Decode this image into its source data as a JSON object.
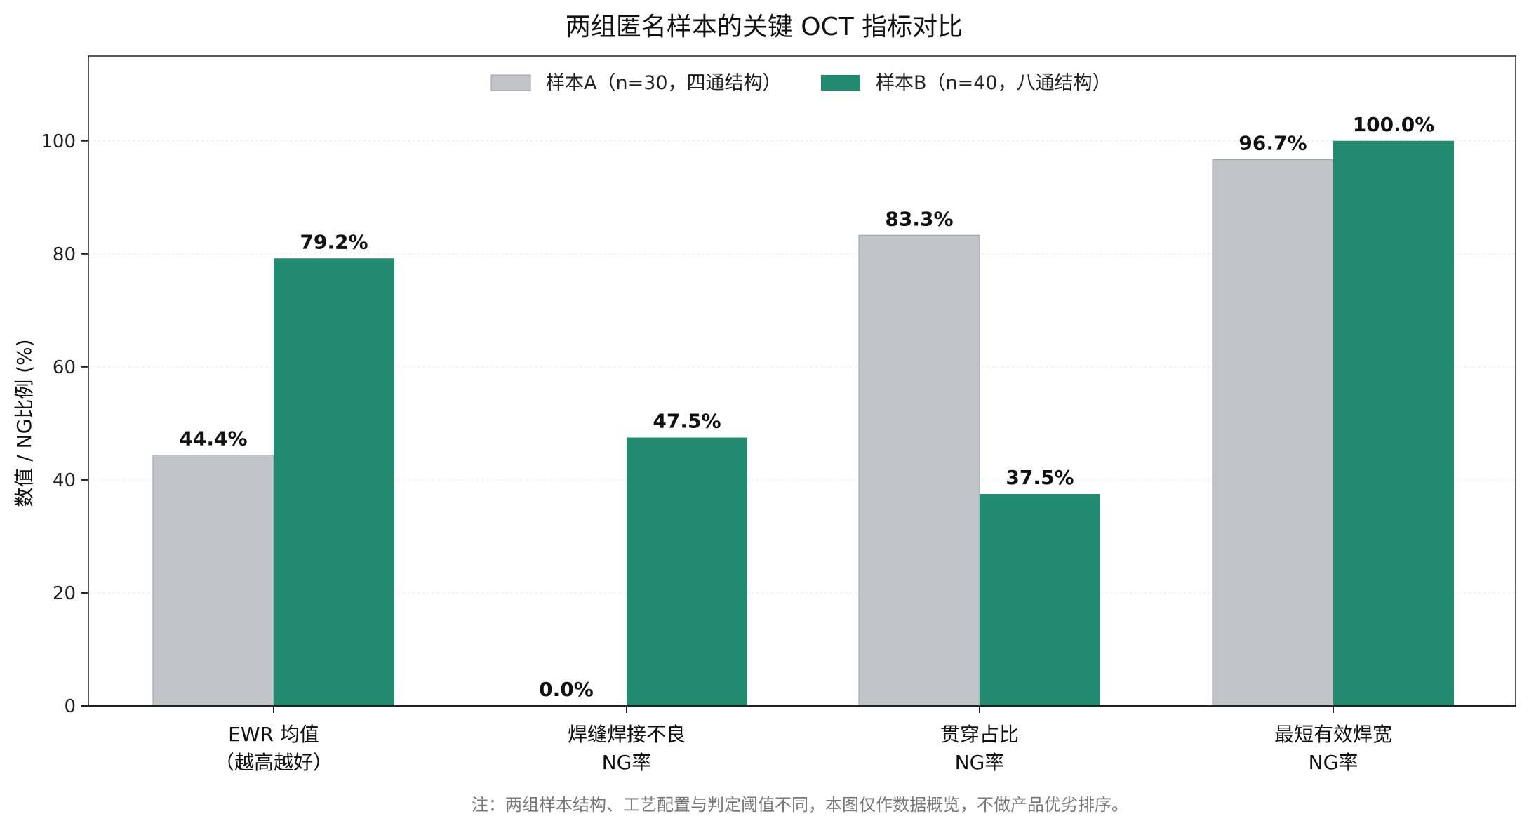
{
  "chart_data": {
    "type": "bar",
    "title": "两组匿名样本的关键 OCT 指标对比",
    "ylabel": "数值 / NG比例 (%)",
    "xlabel": "",
    "ylim": [
      0,
      115
    ],
    "yticks": [
      0,
      20,
      40,
      60,
      80,
      100
    ],
    "grid": "horizontal dashed",
    "legend_position": "top-center",
    "categories": [
      [
        "EWR 均值",
        "（越高越好）"
      ],
      [
        "焊缝焊接不良",
        "NG率"
      ],
      [
        "贯穿占比",
        "NG率"
      ],
      [
        "最短有效焊宽",
        "NG率"
      ]
    ],
    "series": [
      {
        "name": "样本A（n=30，四通结构）",
        "color": "#c0c4c8",
        "values": [
          44.4,
          0.0,
          83.3,
          96.7
        ],
        "labels": [
          "44.4%",
          "0.0%",
          "83.3%",
          "96.7%"
        ]
      },
      {
        "name": "样本B（n=40，八通结构）",
        "color": "#218b71",
        "values": [
          79.2,
          47.5,
          37.5,
          100.0
        ],
        "labels": [
          "79.2%",
          "47.5%",
          "37.5%",
          "100.0%"
        ]
      }
    ]
  },
  "footnote": "注：两组样本结构、工艺配置与判定阈值不同，本图仅作数据概览，不做产品优劣排序。"
}
